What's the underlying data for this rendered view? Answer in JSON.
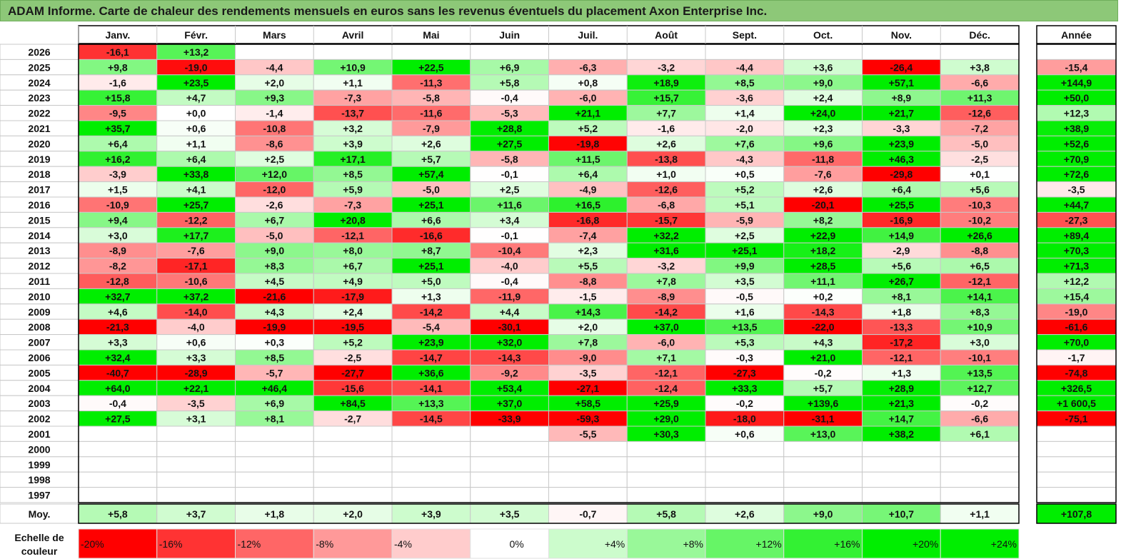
{
  "header": {
    "title": "ADAM Informe. Carte de chaleur des rendements mensuels en euros sans les revenus éventuels du placement Axon Enterprise Inc."
  },
  "chart_data": {
    "type": "heatmap",
    "title": "ADAM Informe. Carte de chaleur des rendements mensuels en euros sans les revenus éventuels du placement Axon Enterprise Inc.",
    "months": [
      "Janv.",
      "Févr.",
      "Mars",
      "Avril",
      "Mai",
      "Juin",
      "Juil.",
      "Août",
      "Sept.",
      "Oct.",
      "Nov.",
      "Déc."
    ],
    "year_header": "Année",
    "years": [
      {
        "year": "2026",
        "m": [
          "-16,1",
          "+13,2",
          "",
          "",
          "",
          "",
          "",
          "",
          "",
          "",
          "",
          ""
        ],
        "y": ""
      },
      {
        "year": "2025",
        "m": [
          "+9,8",
          "-19,0",
          "-4,4",
          "+10,9",
          "+22,5",
          "+6,9",
          "-6,3",
          "-3,2",
          "-4,4",
          "+3,6",
          "-26,4",
          "+3,8"
        ],
        "y": "-15,4"
      },
      {
        "year": "2024",
        "m": [
          "-1,6",
          "+23,5",
          "+2,0",
          "+1,1",
          "-11,3",
          "+5,8",
          "+0,8",
          "+18,9",
          "+8,5",
          "+9,0",
          "+57,1",
          "-6,6"
        ],
        "y": "+144,9"
      },
      {
        "year": "2023",
        "m": [
          "+15,8",
          "+4,7",
          "+9,3",
          "-7,3",
          "-5,8",
          "-0,4",
          "-6,0",
          "+15,7",
          "-3,6",
          "+2,4",
          "+8,9",
          "+11,3"
        ],
        "y": "+50,0"
      },
      {
        "year": "2022",
        "m": [
          "-9,5",
          "+0,0",
          "-1,4",
          "-13,7",
          "-11,6",
          "-5,3",
          "+21,1",
          "+7,7",
          "+1,4",
          "+24,0",
          "+21,7",
          "-12,6"
        ],
        "y": "+12,3"
      },
      {
        "year": "2021",
        "m": [
          "+35,7",
          "+0,6",
          "-10,8",
          "+3,2",
          "-7,9",
          "+28,8",
          "+5,2",
          "-1,6",
          "-2,0",
          "+2,3",
          "-3,3",
          "-7,2"
        ],
        "y": "+38,9"
      },
      {
        "year": "2020",
        "m": [
          "+6,4",
          "+1,1",
          "-8,6",
          "+3,9",
          "+2,6",
          "+27,5",
          "-19,8",
          "+2,6",
          "+7,6",
          "+9,6",
          "+23,9",
          "-5,0"
        ],
        "y": "+52,6"
      },
      {
        "year": "2019",
        "m": [
          "+16,2",
          "+6,4",
          "+2,5",
          "+17,1",
          "+5,7",
          "-5,8",
          "+11,5",
          "-13,8",
          "-4,3",
          "-11,8",
          "+46,3",
          "-2,5"
        ],
        "y": "+70,9"
      },
      {
        "year": "2018",
        "m": [
          "-3,9",
          "+33,8",
          "+12,0",
          "+8,5",
          "+57,4",
          "-0,1",
          "+6,4",
          "+1,0",
          "+0,5",
          "-7,6",
          "-29,8",
          "+0,1"
        ],
        "y": "+72,6"
      },
      {
        "year": "2017",
        "m": [
          "+1,5",
          "+4,1",
          "-12,0",
          "+5,9",
          "-5,0",
          "+2,5",
          "-4,9",
          "-12,6",
          "+5,2",
          "+2,6",
          "+6,4",
          "+5,6"
        ],
        "y": "-3,5"
      },
      {
        "year": "2016",
        "m": [
          "-10,9",
          "+25,7",
          "-2,6",
          "-7,3",
          "+25,1",
          "+11,6",
          "+16,5",
          "-6,8",
          "+5,1",
          "-20,1",
          "+25,5",
          "-10,3"
        ],
        "y": "+44,7"
      },
      {
        "year": "2015",
        "m": [
          "+9,4",
          "-12,2",
          "+6,7",
          "+20,8",
          "+6,6",
          "+3,4",
          "-16,8",
          "-15,7",
          "-5,9",
          "+8,2",
          "-16,9",
          "-10,2"
        ],
        "y": "-27,3"
      },
      {
        "year": "2014",
        "m": [
          "+3,0",
          "+17,7",
          "-5,0",
          "-12,1",
          "-16,6",
          "-0,1",
          "-7,4",
          "+32,2",
          "+2,5",
          "+22,9",
          "+14,9",
          "+26,6"
        ],
        "y": "+89,4"
      },
      {
        "year": "2013",
        "m": [
          "-8,9",
          "-7,6",
          "+9,0",
          "+8,0",
          "+8,7",
          "-10,4",
          "+2,3",
          "+31,6",
          "+25,1",
          "+18,2",
          "-2,9",
          "-8,8"
        ],
        "y": "+70,3"
      },
      {
        "year": "2012",
        "m": [
          "-8,2",
          "-17,1",
          "+8,3",
          "+6,7",
          "+25,1",
          "-4,0",
          "+5,5",
          "-3,2",
          "+9,9",
          "+28,5",
          "+5,6",
          "+6,5"
        ],
        "y": "+71,3"
      },
      {
        "year": "2011",
        "m": [
          "-12,8",
          "-10,6",
          "+4,5",
          "+4,9",
          "+5,0",
          "-0,4",
          "-8,8",
          "+7,8",
          "+3,5",
          "+11,1",
          "+26,7",
          "-12,1"
        ],
        "y": "+12,2"
      },
      {
        "year": "2010",
        "m": [
          "+32,7",
          "+37,2",
          "-21,6",
          "-17,9",
          "+1,3",
          "-11,9",
          "-1,5",
          "-8,9",
          "-0,5",
          "+0,2",
          "+8,1",
          "+14,1"
        ],
        "y": "+15,4"
      },
      {
        "year": "2009",
        "m": [
          "+4,6",
          "-14,0",
          "+4,3",
          "+2,4",
          "-14,2",
          "+4,4",
          "+14,3",
          "-14,2",
          "+1,6",
          "-14,3",
          "+1,8",
          "+8,3"
        ],
        "y": "-19,0"
      },
      {
        "year": "2008",
        "m": [
          "-21,3",
          "-4,0",
          "-19,9",
          "-19,5",
          "-5,4",
          "-30,1",
          "+2,0",
          "+37,0",
          "+13,5",
          "-22,0",
          "-13,3",
          "+10,9"
        ],
        "y": "-61,6"
      },
      {
        "year": "2007",
        "m": [
          "+3,3",
          "+0,6",
          "+0,3",
          "+5,2",
          "+23,9",
          "+32,0",
          "+7,8",
          "-6,0",
          "+5,3",
          "+4,3",
          "-17,2",
          "+3,0"
        ],
        "y": "+70,0"
      },
      {
        "year": "2006",
        "m": [
          "+32,4",
          "+3,3",
          "+8,5",
          "-2,5",
          "-14,7",
          "-14,3",
          "-9,0",
          "+7,1",
          "-0,3",
          "+21,0",
          "-12,1",
          "-10,1"
        ],
        "y": "-1,7"
      },
      {
        "year": "2005",
        "m": [
          "-40,7",
          "-28,9",
          "-5,7",
          "-27,7",
          "+36,6",
          "-9,2",
          "-3,5",
          "-12,1",
          "-27,3",
          "-0,2",
          "+1,3",
          "+13,5"
        ],
        "y": "-74,8"
      },
      {
        "year": "2004",
        "m": [
          "+64,0",
          "+22,1",
          "+46,4",
          "-15,6",
          "-14,1",
          "+53,4",
          "-27,1",
          "-12,4",
          "+33,3",
          "+5,7",
          "+28,9",
          "+12,7"
        ],
        "y": "+326,5"
      },
      {
        "year": "2003",
        "m": [
          "-0,4",
          "-3,5",
          "+6,9",
          "+84,5",
          "+13,3",
          "+37,0",
          "+58,5",
          "+25,9",
          "-0,2",
          "+139,6",
          "+21,3",
          "-0,2"
        ],
        "y": "+1 600,5"
      },
      {
        "year": "2002",
        "m": [
          "+27,5",
          "+3,1",
          "+8,1",
          "-2,7",
          "-14,5",
          "-33,9",
          "-59,3",
          "+29,0",
          "-18,0",
          "-31,1",
          "+14,7",
          "-6,6"
        ],
        "y": "-75,1"
      },
      {
        "year": "2001",
        "m": [
          "",
          "",
          "",
          "",
          "",
          "",
          "-5,5",
          "+30,3",
          "+0,6",
          "+13,0",
          "+38,2",
          "+6,1"
        ],
        "y": ""
      },
      {
        "year": "2000",
        "m": [
          "",
          "",
          "",
          "",
          "",
          "",
          "",
          "",
          "",
          "",
          "",
          ""
        ],
        "y": ""
      },
      {
        "year": "1999",
        "m": [
          "",
          "",
          "",
          "",
          "",
          "",
          "",
          "",
          "",
          "",
          "",
          ""
        ],
        "y": ""
      },
      {
        "year": "1998",
        "m": [
          "",
          "",
          "",
          "",
          "",
          "",
          "",
          "",
          "",
          "",
          "",
          ""
        ],
        "y": ""
      },
      {
        "year": "1997",
        "m": [
          "",
          "",
          "",
          "",
          "",
          "",
          "",
          "",
          "",
          "",
          "",
          ""
        ],
        "y": ""
      }
    ],
    "average": {
      "label": "Moy.",
      "m": [
        "+5,8",
        "+3,7",
        "+1,8",
        "+2,0",
        "+3,9",
        "+3,5",
        "-0,7",
        "+5,8",
        "+2,6",
        "+9,0",
        "+10,7",
        "+1,1"
      ],
      "y": "+107,8"
    },
    "scale": {
      "label_line1": "Echelle de",
      "label_line2": "couleur",
      "steps": [
        {
          "label": "-20%",
          "value": -20
        },
        {
          "label": "-16%",
          "value": -16
        },
        {
          "label": "-12%",
          "value": -12
        },
        {
          "label": "-8%",
          "value": -8
        },
        {
          "label": "-4%",
          "value": -4
        },
        {
          "label": "0%",
          "value": 0
        },
        {
          "label": "+4%",
          "value": 4
        },
        {
          "label": "+8%",
          "value": 8
        },
        {
          "label": "+12%",
          "value": 12
        },
        {
          "label": "+16%",
          "value": 16
        },
        {
          "label": "+20%",
          "value": 20
        },
        {
          "label": "+24%",
          "value": 24
        }
      ]
    },
    "colors": {
      "negative_full": "#ff0000",
      "positive_full": "#00ee00",
      "neutral": "#ffffff",
      "title_bg": "#8dc878",
      "grid": "#c8c8c8"
    }
  }
}
